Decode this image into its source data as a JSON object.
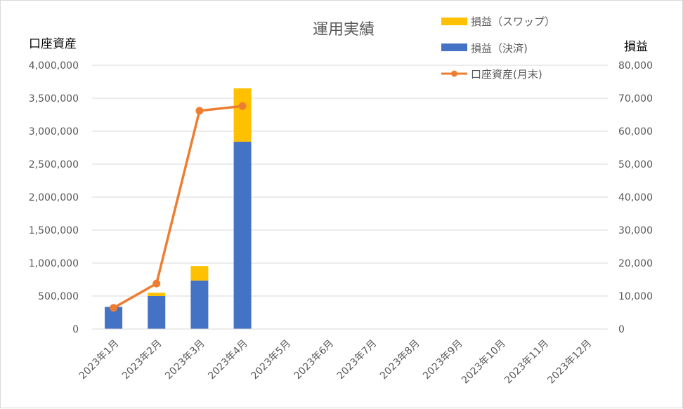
{
  "chart_data": {
    "type": "bar",
    "title": "運用実績",
    "ylabel_left": "口座資産",
    "ylabel_right": "損益",
    "categories": [
      "2023年1月",
      "2023年2月",
      "2023年3月",
      "2023年4月",
      "2023年5月",
      "2023年6月",
      "2023年7月",
      "2023年8月",
      "2023年9月",
      "2023年10月",
      "2023年11月",
      "2023年12月"
    ],
    "ylim_left": [
      0,
      4000000
    ],
    "ylim_right": [
      0,
      80000
    ],
    "yticks_left": [
      "4,000,000",
      "3,500,000",
      "3,000,000",
      "2,500,000",
      "2,000,000",
      "1,500,000",
      "1,000,000",
      "500,000",
      "0"
    ],
    "yticks_right": [
      "80,000",
      "70,000",
      "60,000",
      "50,000",
      "40,000",
      "30,000",
      "20,000",
      "10,000",
      "0"
    ],
    "grid": true,
    "legend_position": "top-right",
    "series": [
      {
        "name": "損益（決済)",
        "type": "bar",
        "stack": "pnl",
        "axis": "right",
        "color": "#4472c4",
        "values": [
          6700,
          10000,
          14700,
          56800,
          null,
          null,
          null,
          null,
          null,
          null,
          null,
          null
        ]
      },
      {
        "name": "損益（スワップ）",
        "type": "bar",
        "stack": "pnl",
        "axis": "right",
        "color": "#ffc000",
        "values": [
          0,
          1000,
          4400,
          16200,
          null,
          null,
          null,
          null,
          null,
          null,
          null,
          null
        ]
      },
      {
        "name": "口座資産(月末)",
        "type": "line",
        "axis": "left",
        "color": "#ed7d31",
        "values": [
          320000,
          690000,
          3310000,
          3380000,
          null,
          null,
          null,
          null,
          null,
          null,
          null,
          null
        ]
      }
    ]
  }
}
